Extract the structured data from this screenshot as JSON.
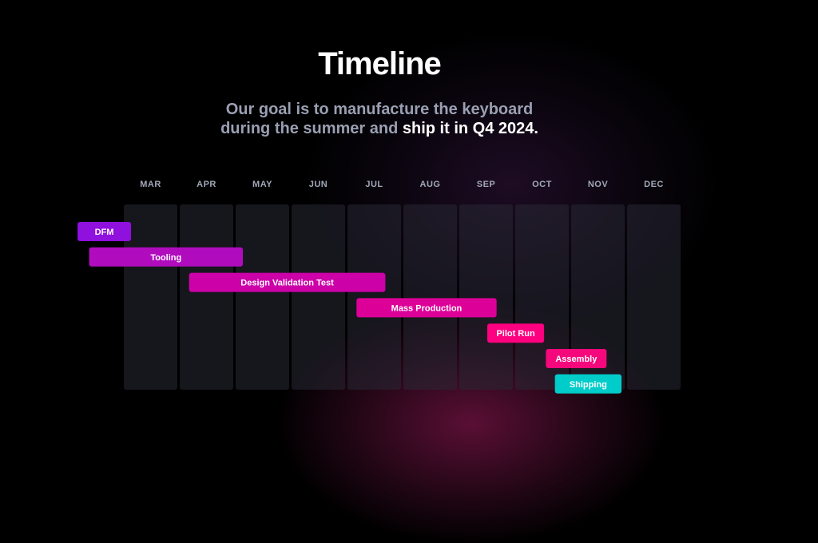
{
  "header": {
    "title": "Timeline",
    "subtitle_prefix": "Our goal is to manufacture the keyboard during the summer and ",
    "subtitle_highlight": "ship it in Q4 2024."
  },
  "chart_data": {
    "type": "gantt",
    "categories": [
      "MAR",
      "APR",
      "MAY",
      "JUN",
      "JUL",
      "AUG",
      "SEP",
      "OCT",
      "NOV",
      "DEC"
    ],
    "year": 2024,
    "tasks": [
      {
        "name": "DFM",
        "start": "2024-02-06",
        "end": "2024-03-05",
        "color": "#9010de"
      },
      {
        "name": "Tooling",
        "start": "2024-02-12",
        "end": "2024-05-05",
        "color": "#b00cbe"
      },
      {
        "name": "Design Validation Test",
        "start": "2024-04-06",
        "end": "2024-07-22",
        "color": "#cc02a8"
      },
      {
        "name": "Mass Production",
        "start": "2024-07-06",
        "end": "2024-09-21",
        "color": "#dd0098"
      },
      {
        "name": "Pilot Run",
        "start": "2024-09-16",
        "end": "2024-10-17",
        "color": "#ff0080"
      },
      {
        "name": "Assembly",
        "start": "2024-10-18",
        "end": "2024-11-20",
        "color": "#f5087c"
      },
      {
        "name": "Shipping",
        "start": "2024-10-23",
        "end": "2024-11-28",
        "color": "#00cdca"
      }
    ]
  }
}
